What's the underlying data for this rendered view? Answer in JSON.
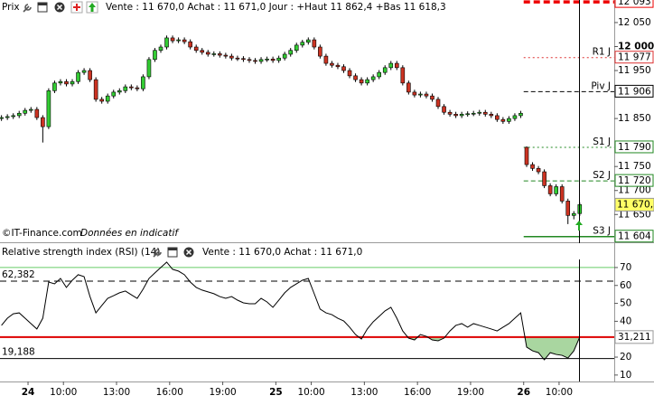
{
  "chart_data": [
    {
      "type": "candlestick",
      "title": "Prix",
      "info": "Vente : 11 670,0 Achat : 11 671,0 Jour : +Haut 11 862,4 +Bas 11 618,3",
      "credit": "©IT-Finance.com",
      "note": "Données en indicatif",
      "x": [
        -90,
        -70,
        -50,
        -30,
        -10,
        10,
        30,
        50,
        70,
        90,
        110,
        130,
        150,
        170,
        190,
        210,
        230,
        250,
        270,
        290,
        310,
        330,
        350,
        370,
        390,
        410,
        430,
        450,
        470,
        490,
        510,
        530,
        550,
        570,
        590,
        610,
        630,
        650,
        670,
        690,
        710,
        730,
        750,
        770,
        790,
        810,
        830,
        850,
        870,
        890,
        910,
        930,
        950,
        970,
        990,
        1010,
        1030,
        1050,
        1070,
        1090,
        1110,
        1130,
        1150,
        1170,
        1190,
        1210,
        1230,
        1250,
        1270,
        1290,
        1310,
        1330,
        1350,
        1370,
        1390,
        1410,
        1430,
        1450,
        1470,
        1490,
        1510,
        1530,
        1550,
        1570,
        1590,
        1610,
        1630,
        1650,
        1670,
        1690,
        1710,
        1730,
        1750,
        1770,
        1790,
        1810,
        1830,
        1850,
        1870
      ],
      "open": [
        11850,
        11852,
        11854,
        11856,
        11861,
        11867,
        11869,
        11852,
        11833,
        11908,
        11924,
        11927,
        11922,
        11927,
        11946,
        11950,
        11931,
        11890,
        11886,
        11897,
        11905,
        11908,
        11916,
        11914,
        11912,
        11937,
        11973,
        11992,
        11999,
        12018,
        12012,
        12014,
        12010,
        11999,
        11992,
        11988,
        11984,
        11985,
        11982,
        11980,
        11976,
        11975,
        11973,
        11971,
        11969,
        11973,
        11974,
        11971,
        11976,
        11984,
        11992,
        12003,
        12009,
        12014,
        11999,
        11980,
        11965,
        11961,
        11958,
        11950,
        11939,
        11931,
        11924,
        11931,
        11937,
        11946,
        11956,
        11965,
        11956,
        11924,
        11905,
        11899,
        11901,
        11897,
        11890,
        11875,
        11863,
        11859,
        11856,
        11859,
        11860,
        11861,
        11863,
        11859,
        11856,
        11848,
        11844,
        11850,
        11856,
        11790,
        11754,
        11746,
        11739,
        11710,
        11693,
        11708,
        11678,
        11648,
        11652
      ],
      "high": [
        11857,
        11859,
        11861,
        11866,
        11872,
        11874,
        11874,
        11857,
        11913,
        11929,
        11932,
        11932,
        11932,
        11951,
        11955,
        11955,
        11936,
        11895,
        11902,
        11910,
        11913,
        11921,
        11921,
        11919,
        11942,
        11978,
        11997,
        12004,
        12023,
        12023,
        12019,
        12019,
        12015,
        12004,
        11997,
        11993,
        11990,
        11990,
        11987,
        11985,
        11981,
        11980,
        11978,
        11976,
        11978,
        11979,
        11979,
        11981,
        11989,
        11997,
        12008,
        12014,
        12019,
        12019,
        12004,
        11985,
        11970,
        11966,
        11963,
        11955,
        11944,
        11936,
        11936,
        11942,
        11951,
        11961,
        11970,
        11970,
        11961,
        11929,
        11910,
        11906,
        11906,
        11902,
        11895,
        11880,
        11868,
        11864,
        11864,
        11865,
        11866,
        11868,
        11868,
        11864,
        11861,
        11853,
        11855,
        11861,
        11866,
        11792,
        11759,
        11751,
        11744,
        11715,
        11713,
        11713,
        11683,
        11657,
        11675
      ],
      "low": [
        11845,
        11847,
        11849,
        11851,
        11856,
        11862,
        11847,
        11800,
        11828,
        11903,
        11919,
        11917,
        11917,
        11922,
        11941,
        11926,
        11885,
        11881,
        11881,
        11892,
        11900,
        11903,
        11909,
        11907,
        11907,
        11932,
        11968,
        11987,
        11994,
        12007,
        12007,
        12005,
        11994,
        11987,
        11983,
        11979,
        11979,
        11977,
        11975,
        11971,
        11970,
        11968,
        11966,
        11964,
        11964,
        11968,
        11966,
        11966,
        11971,
        11979,
        11987,
        11998,
        12004,
        11994,
        11975,
        11960,
        11956,
        11953,
        11945,
        11934,
        11926,
        11919,
        11919,
        11926,
        11932,
        11941,
        11951,
        11951,
        11919,
        11900,
        11894,
        11894,
        11892,
        11885,
        11870,
        11858,
        11854,
        11851,
        11851,
        11854,
        11855,
        11856,
        11854,
        11851,
        11843,
        11839,
        11839,
        11845,
        11851,
        11749,
        11741,
        11734,
        11705,
        11688,
        11688,
        11673,
        11630,
        11640,
        11647
      ],
      "close": [
        11852,
        11854,
        11856,
        11861,
        11867,
        11869,
        11852,
        11833,
        11908,
        11924,
        11927,
        11922,
        11927,
        11946,
        11950,
        11931,
        11890,
        11886,
        11897,
        11905,
        11908,
        11916,
        11914,
        11912,
        11937,
        11973,
        11992,
        11999,
        12018,
        12012,
        12014,
        12010,
        11999,
        11992,
        11988,
        11984,
        11985,
        11982,
        11980,
        11976,
        11975,
        11973,
        11971,
        11969,
        11973,
        11974,
        11971,
        11976,
        11984,
        11992,
        12003,
        12009,
        12014,
        11999,
        11980,
        11965,
        11961,
        11958,
        11950,
        11939,
        11931,
        11924,
        11931,
        11937,
        11946,
        11956,
        11965,
        11956,
        11924,
        11905,
        11899,
        11901,
        11897,
        11890,
        11875,
        11863,
        11859,
        11856,
        11859,
        11860,
        11861,
        11863,
        11859,
        11856,
        11848,
        11844,
        11850,
        11856,
        11861,
        11754,
        11746,
        11739,
        11710,
        11693,
        11708,
        11678,
        11648,
        11652,
        11670.5
      ],
      "last_label": "11 670,5",
      "up_color": "#33cc33",
      "down_color": "#cc3322",
      "xlim": [
        -95,
        1987
      ],
      "xticks": [
        {
          "value": 0,
          "label": "24"
        },
        {
          "value": 120,
          "label": "10:00"
        },
        {
          "value": 300,
          "label": "13:00"
        },
        {
          "value": 480,
          "label": "16:00"
        },
        {
          "value": 660,
          "label": "19:00"
        },
        {
          "value": 840,
          "label": "25"
        },
        {
          "value": 960,
          "label": "10:00"
        },
        {
          "value": 1140,
          "label": "13:00"
        },
        {
          "value": 1320,
          "label": "16:00"
        },
        {
          "value": 1500,
          "label": "19:00"
        },
        {
          "value": 1680,
          "label": "26"
        },
        {
          "value": 1800,
          "label": "10:00"
        }
      ],
      "ylim": [
        11594,
        12097
      ],
      "yticks": [
        {
          "value": 12050,
          "label": "12 050"
        },
        {
          "value": 12000,
          "label": "12 000"
        },
        {
          "value": 11950,
          "label": "11 950"
        },
        {
          "value": 11850,
          "label": "11 850"
        },
        {
          "value": 11750,
          "label": "11 750"
        },
        {
          "value": 11700,
          "label": "11 700"
        },
        {
          "value": 11650,
          "label": "11 650"
        }
      ],
      "levels": [
        {
          "value": 12093,
          "label": "12 093",
          "color": "#ee0000",
          "style": "bold-dash"
        },
        {
          "name": "R1 J",
          "value": 11977,
          "label": "11 977",
          "color": "#dd3333",
          "style": "dot"
        },
        {
          "name": "Piv J",
          "value": 11906,
          "label": "11 906",
          "color": "#000000",
          "style": "dash"
        },
        {
          "name": "S1 J",
          "value": 11790,
          "label": "11 790",
          "color": "#228822",
          "style": "dot"
        },
        {
          "name": "S2 J",
          "value": 11720,
          "label": "11 720",
          "color": "#228822",
          "style": "dash"
        },
        {
          "name": "S3 J",
          "value": 11604,
          "label": "11 604",
          "color": "#228822",
          "style": "solid"
        }
      ]
    },
    {
      "type": "line",
      "title": "Relative strength index (RSI) (14)",
      "info": "Vente : 11 670,0 Achat : 11 671,0",
      "values": [
        37.7,
        41.7,
        44.2,
        44.7,
        41.7,
        38.7,
        35.7,
        41.7,
        61.9,
        60.9,
        63.9,
        58.9,
        62.9,
        66,
        64.9,
        53.8,
        44.7,
        48.8,
        52.8,
        54.3,
        55.9,
        56.9,
        54.8,
        52.8,
        57.9,
        63.9,
        67,
        70,
        73,
        69,
        68,
        66,
        61.9,
        58.9,
        57.4,
        56.4,
        55.4,
        53.8,
        52.8,
        53.8,
        51.8,
        50.3,
        49.8,
        49.8,
        52.8,
        50.8,
        47.8,
        51.8,
        55.9,
        58.9,
        60.9,
        62.9,
        63.9,
        55.4,
        46.8,
        44.7,
        43.7,
        41.7,
        40.2,
        36.7,
        32.6,
        30.1,
        35.7,
        39.7,
        42.7,
        45.8,
        47.8,
        41.7,
        34.6,
        30.6,
        29.6,
        32.6,
        31.6,
        29.6,
        29.1,
        30.6,
        34.6,
        37.7,
        38.7,
        36.7,
        38.7,
        37.7,
        36.7,
        35.7,
        34.6,
        36.7,
        38.7,
        41.7,
        44.7,
        25.6,
        23.5,
        22.5,
        18.5,
        22.5,
        21.5,
        21,
        19.5,
        23.5,
        31.211
      ],
      "color": "#000000",
      "fill_color": "#a9d6a0",
      "ylim": [
        6.4,
        74
      ],
      "yticks": [
        70,
        60,
        50,
        40,
        20,
        10
      ],
      "levels": [
        {
          "value": 70,
          "color": "#66cc66",
          "style": "solid"
        },
        {
          "value": 62.382,
          "label": "62,382",
          "color": "#000000",
          "style": "dash"
        },
        {
          "value": 19.188,
          "label": "19,188",
          "color": "#000000",
          "style": "solid"
        },
        {
          "value": 31.211,
          "label": "31,211",
          "color": "#dd0000",
          "style": "thick"
        }
      ]
    }
  ]
}
